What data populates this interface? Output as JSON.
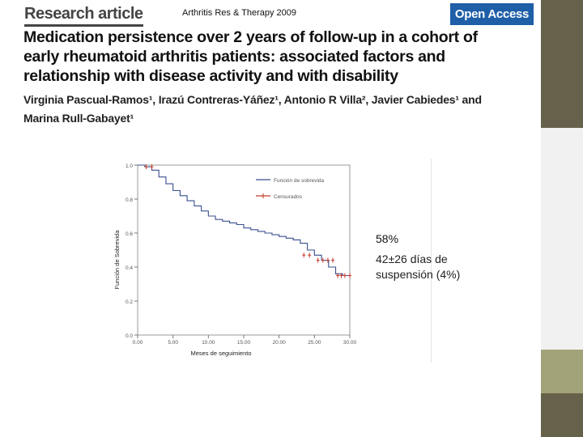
{
  "header": {
    "label": "Research article",
    "journal": "Arthritis Res & Therapy 2009",
    "badge": "Open Access"
  },
  "title_lines": [
    "Medication persistence over 2 years of follow-up in a cohort of",
    "early rheumatoid arthritis patients: associated factors and",
    "relationship with disease activity and with disability"
  ],
  "author_lines": [
    "Virginia Pascual-Ramos¹, Irazú Contreras-Yáñez¹, Antonio R Villa², Javier Cabiedes¹ and",
    "Marina Rull-Gabayet¹"
  ],
  "annotations": {
    "persistence": "58%",
    "days_line1": "42±26 días de",
    "days_line2": "suspensión  (4%)"
  },
  "chart_data": {
    "type": "line",
    "title": "",
    "xlabel": "Meses de seguimiento",
    "ylabel": "Función de Sobrevida",
    "xlim": [
      0,
      30
    ],
    "ylim": [
      0,
      1.0
    ],
    "x_ticks": [
      "0.00",
      "5.00",
      "10.00",
      "15.00",
      "20.00",
      "25.00",
      "30.00"
    ],
    "y_ticks": [
      "0.0",
      "0.2",
      "0.4",
      "0.6",
      "0.8",
      "1.0"
    ],
    "legend": [
      "Función de sobrevida",
      "Censurados"
    ],
    "legend_position": "top-right",
    "series": [
      {
        "name": "Función de sobrevida",
        "x": [
          0,
          1,
          2,
          3,
          4,
          5,
          6,
          7,
          8,
          9,
          10,
          11,
          12,
          13,
          14,
          15,
          16,
          17,
          18,
          19,
          20,
          21,
          22,
          23,
          24,
          25,
          26,
          27,
          28,
          29
        ],
        "y": [
          1.0,
          0.99,
          0.97,
          0.93,
          0.89,
          0.85,
          0.82,
          0.79,
          0.76,
          0.73,
          0.7,
          0.68,
          0.67,
          0.66,
          0.65,
          0.63,
          0.62,
          0.61,
          0.6,
          0.59,
          0.58,
          0.57,
          0.56,
          0.54,
          0.5,
          0.47,
          0.44,
          0.4,
          0.36,
          0.35
        ]
      }
    ],
    "censored": {
      "name": "Censurados",
      "x": [
        1.2,
        2.0,
        23.5,
        24.3,
        25.5,
        26.2,
        26.9,
        27.6,
        28.3,
        28.8,
        29.3,
        30.0
      ],
      "y": [
        0.99,
        0.99,
        0.47,
        0.47,
        0.44,
        0.44,
        0.44,
        0.44,
        0.35,
        0.35,
        0.35,
        0.35
      ]
    }
  }
}
